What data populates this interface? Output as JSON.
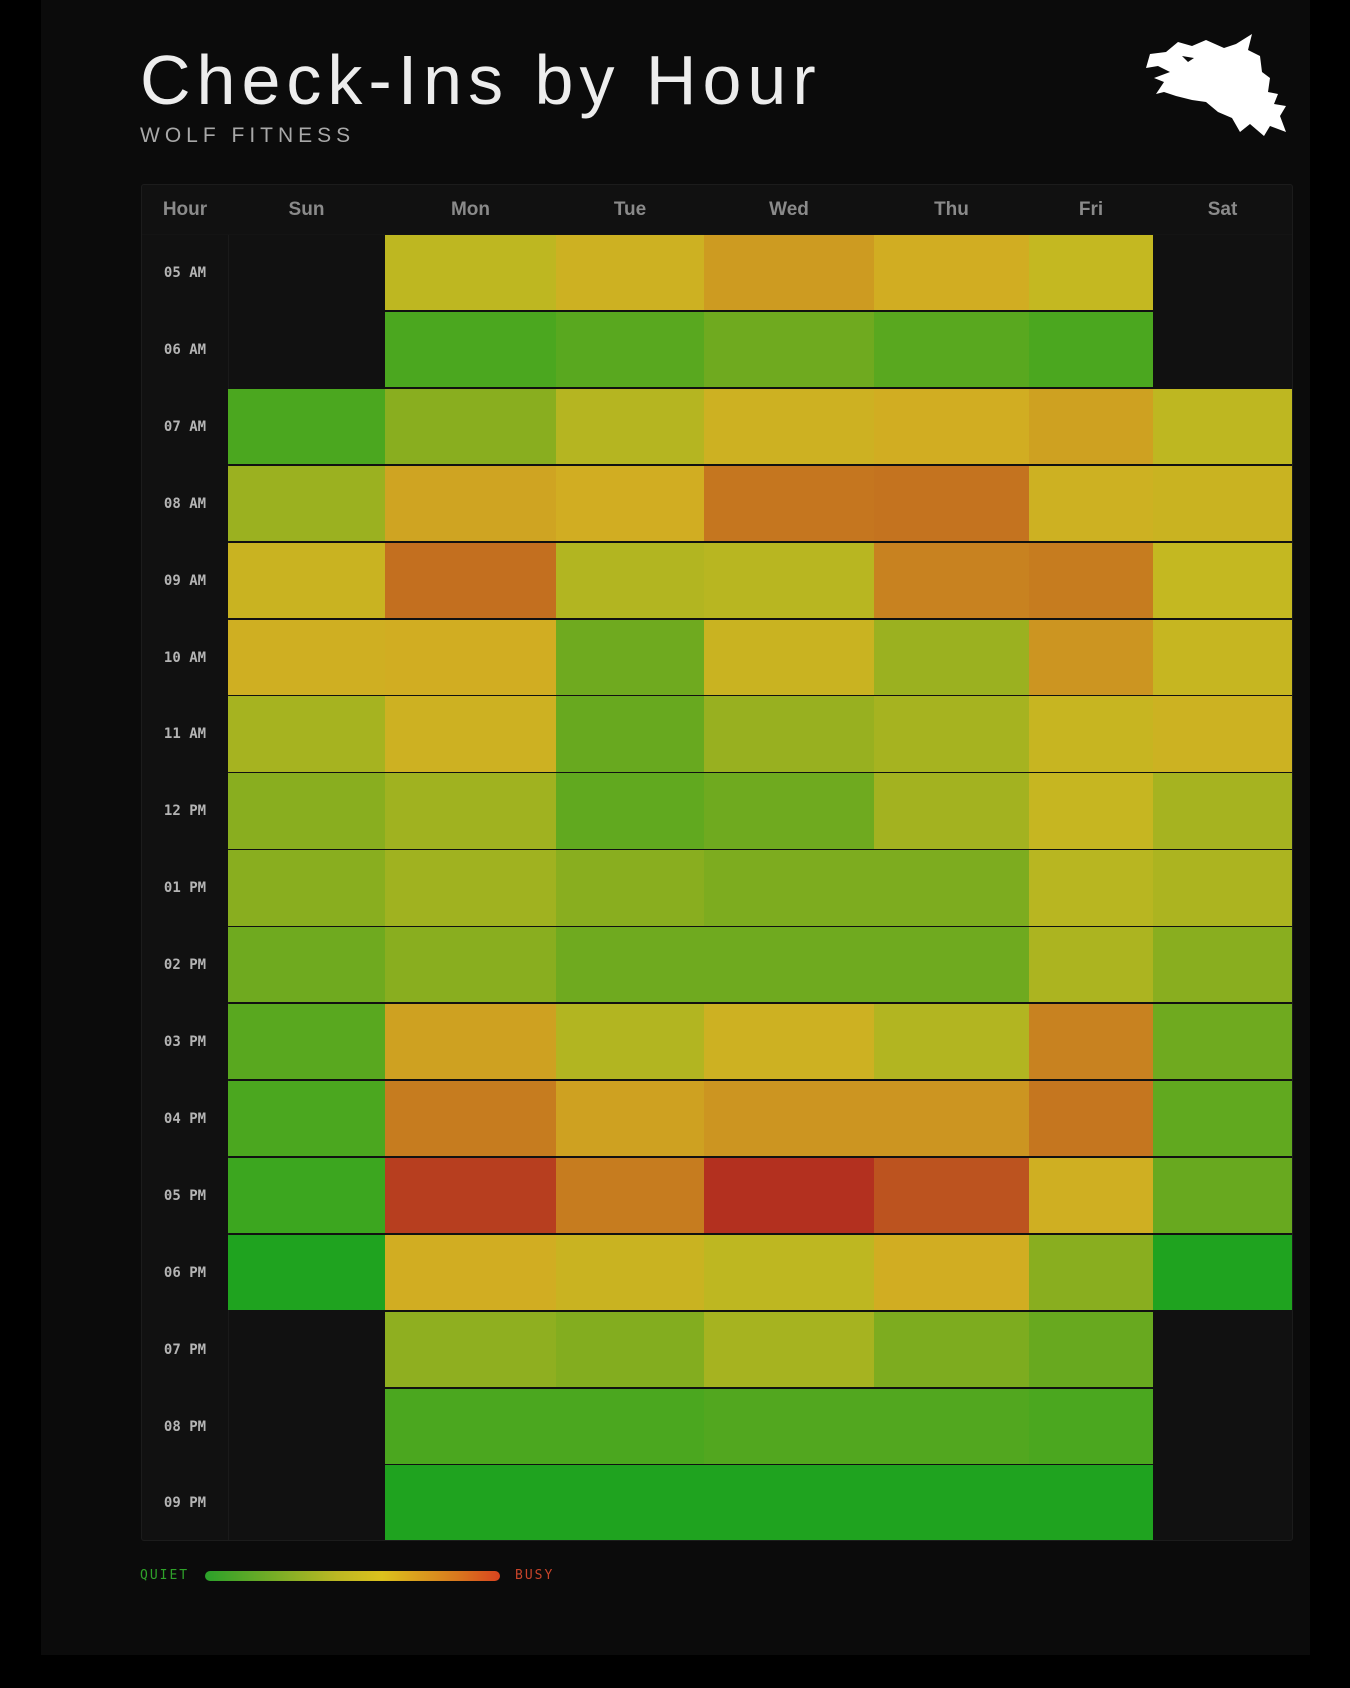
{
  "title": "Check-Ins by Hour",
  "subtitle": "WOLF FITNESS",
  "logo_icon": "wolf-head-icon",
  "legend": {
    "low_label": "QUIET",
    "high_label": "BUSY"
  },
  "colors": {
    "background": "#0b0b0b",
    "low": "#1fa31f",
    "mid": "#d4b21f",
    "high": "#b3301f",
    "closed": "#111111"
  },
  "chart_data": {
    "type": "heatmap",
    "corner_label": "Hour",
    "columns": [
      "Sun",
      "Mon",
      "Tue",
      "Wed",
      "Thu",
      "Fri",
      "Sat"
    ],
    "rows": [
      "05 AM",
      "06 AM",
      "07 AM",
      "08 AM",
      "09 AM",
      "10 AM",
      "11 AM",
      "12 PM",
      "01 PM",
      "02 PM",
      "03 PM",
      "04 PM",
      "05 PM",
      "06 PM",
      "07 PM",
      "08 PM",
      "09 PM"
    ],
    "value_scale": "relative busyness, 0 = quiet, 1 = busy; null = closed",
    "values": [
      [
        null,
        0.48,
        0.58,
        0.68,
        0.62,
        0.5,
        null
      ],
      [
        null,
        0.12,
        0.16,
        0.22,
        0.16,
        0.12,
        null
      ],
      [
        0.12,
        0.3,
        0.45,
        0.58,
        0.62,
        0.66,
        0.48
      ],
      [
        0.36,
        0.65,
        0.62,
        0.8,
        0.81,
        0.58,
        0.55
      ],
      [
        0.55,
        0.82,
        0.44,
        0.46,
        0.76,
        0.78,
        0.5
      ],
      [
        0.6,
        0.62,
        0.22,
        0.55,
        0.36,
        0.7,
        0.52
      ],
      [
        0.4,
        0.58,
        0.2,
        0.35,
        0.4,
        0.53,
        0.57
      ],
      [
        0.3,
        0.38,
        0.18,
        0.22,
        0.39,
        0.52,
        0.4
      ],
      [
        0.3,
        0.38,
        0.3,
        0.26,
        0.26,
        0.46,
        0.42
      ],
      [
        0.22,
        0.3,
        0.22,
        0.22,
        0.22,
        0.42,
        0.3
      ],
      [
        0.16,
        0.66,
        0.44,
        0.58,
        0.44,
        0.76,
        0.22
      ],
      [
        0.12,
        0.78,
        0.66,
        0.7,
        0.7,
        0.8,
        0.18
      ],
      [
        0.08,
        0.96,
        0.78,
        1.0,
        0.9,
        0.6,
        0.2
      ],
      [
        0.0,
        0.62,
        0.55,
        0.48,
        0.62,
        0.3,
        0.0
      ],
      [
        null,
        0.32,
        0.28,
        0.4,
        0.26,
        0.2,
        null
      ],
      [
        null,
        0.12,
        0.12,
        0.14,
        0.14,
        0.12,
        null
      ],
      [
        null,
        0.0,
        0.0,
        0.0,
        0.0,
        0.0,
        null
      ]
    ]
  }
}
